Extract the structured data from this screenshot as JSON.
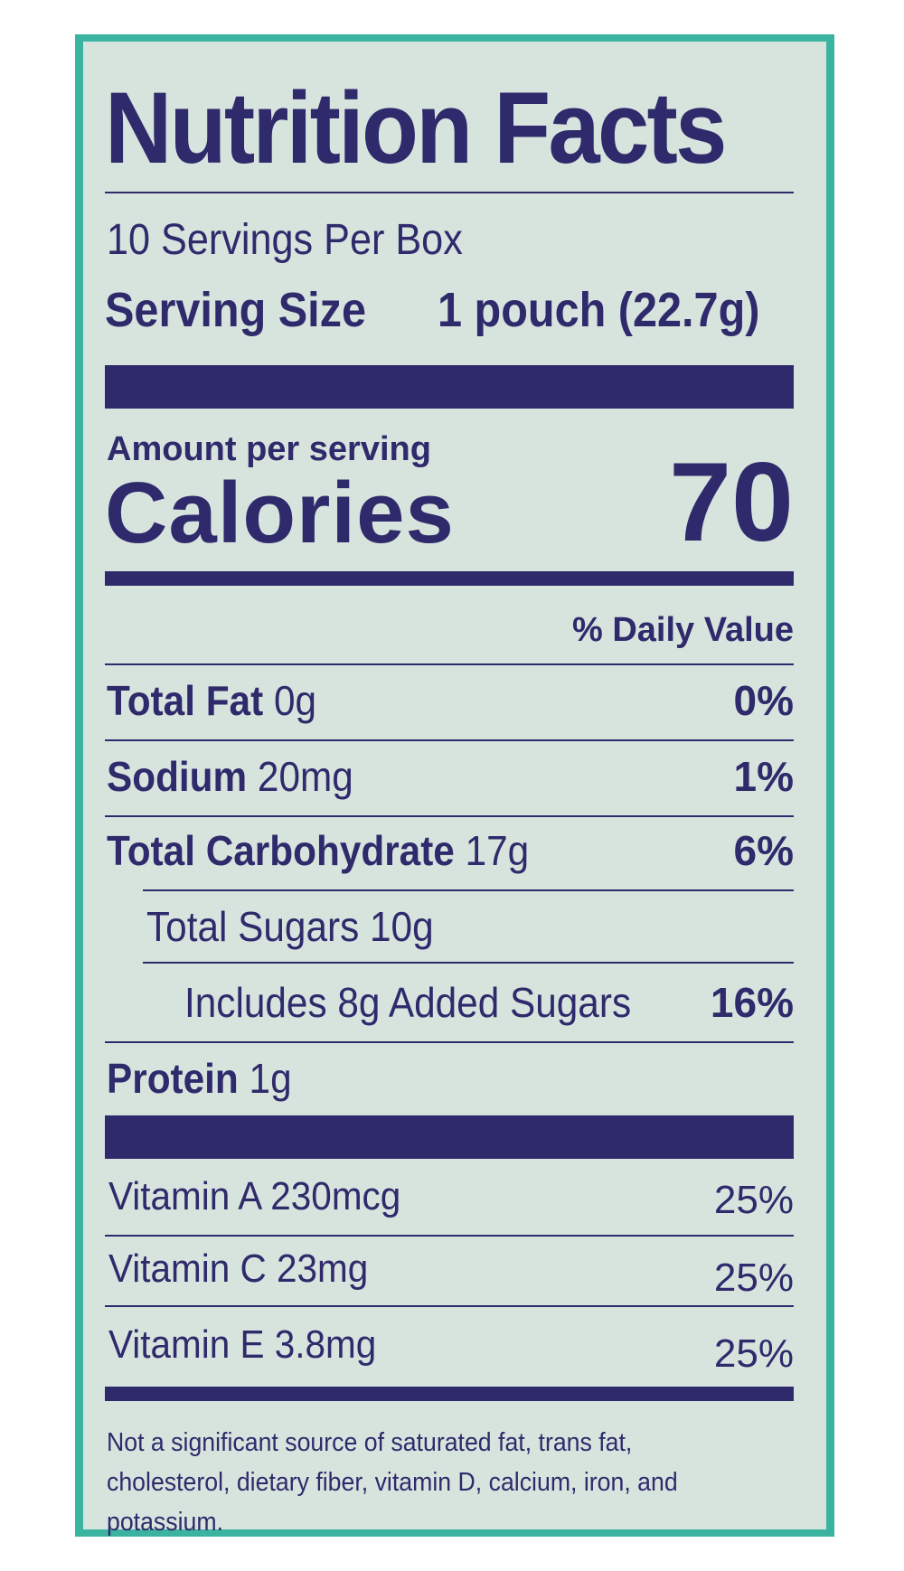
{
  "label": {
    "title": "Nutrition Facts",
    "servings_per_box": "10 Servings Per Box",
    "serving_size_label": "Serving Size",
    "serving_size_value": "1 pouch (22.7g)",
    "amount_per_serving": "Amount per serving",
    "calories_label": "Calories",
    "calories_value": "70",
    "daily_value_header": "% Daily Value",
    "nutrients": [
      {
        "name": "Total Fat",
        "amount": "0g",
        "dv": "0%"
      },
      {
        "name": "Sodium",
        "amount": "20mg",
        "dv": "1%"
      },
      {
        "name": "Total Carbohydrate",
        "amount": "17g",
        "dv": "6%"
      },
      {
        "name": "Total Sugars 10g",
        "amount": "",
        "dv": ""
      },
      {
        "name": "Includes 8g Added Sugars",
        "amount": "",
        "dv": "16%"
      },
      {
        "name": "Protein",
        "amount": "1g",
        "dv": ""
      }
    ],
    "vitamins": [
      {
        "name": "Vitamin A 230mcg",
        "dv": "25%"
      },
      {
        "name": "Vitamin C 23mg",
        "dv": "25%"
      },
      {
        "name": "Vitamin E 3.8mg",
        "dv": "25%"
      }
    ],
    "footnote": "Not a significant source of saturated fat, trans fat, cholesterol, dietary fiber, vitamin D, calcium, iron, and potassium."
  },
  "colors": {
    "ink": "#2f2a6b",
    "panel": "#d7e4de",
    "border": "#3ab3a1"
  }
}
